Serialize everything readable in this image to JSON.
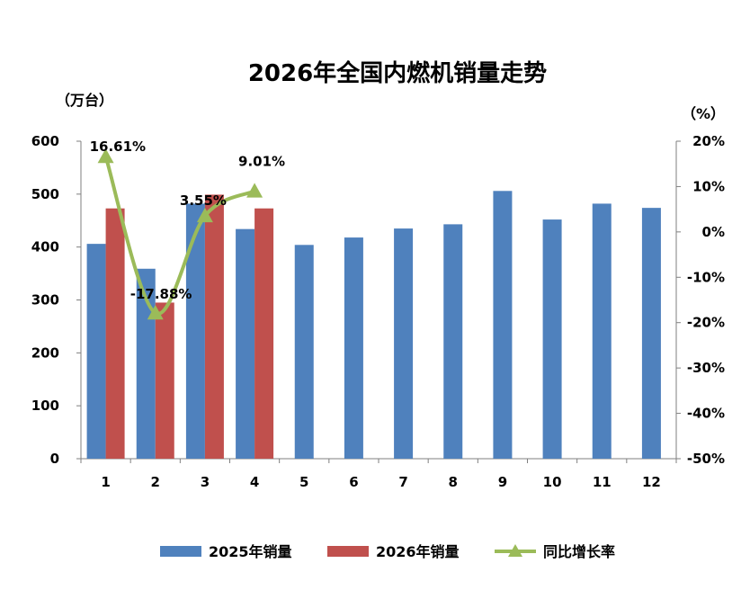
{
  "chart_data": {
    "type": "bar",
    "title": "2026年全国内燃机销量走势",
    "y_left_unit": "（万台）",
    "y_right_unit": "（%）",
    "categories": [
      "1",
      "2",
      "3",
      "4",
      "5",
      "6",
      "7",
      "8",
      "9",
      "10",
      "11",
      "12"
    ],
    "y_left_ticks": [
      "0",
      "100",
      "200",
      "300",
      "400",
      "500",
      "600"
    ],
    "y_right_ticks": [
      "-50%",
      "-40%",
      "-30%",
      "-20%",
      "-10%",
      "0%",
      "10%",
      "20%"
    ],
    "ylim_left": [
      0,
      600
    ],
    "ylim_right": [
      -50,
      20
    ],
    "series": [
      {
        "name": "2025年销量",
        "type": "bar",
        "color": "#4F81BD",
        "values": [
          406,
          359,
          482,
          434,
          404,
          418,
          435,
          443,
          506,
          452,
          482,
          474
        ]
      },
      {
        "name": "2026年销量",
        "type": "bar",
        "color": "#C0504D",
        "values": [
          473,
          295,
          499,
          473,
          null,
          null,
          null,
          null,
          null,
          null,
          null,
          null
        ]
      },
      {
        "name": "同比增长率",
        "type": "line",
        "axis": "right",
        "color": "#9BBB59",
        "marker": "triangle",
        "values": [
          16.61,
          -17.88,
          3.55,
          9.01,
          null,
          null,
          null,
          null,
          null,
          null,
          null,
          null
        ],
        "labels": [
          "16.61%",
          "-17.88%",
          "3.55%",
          "9.01%"
        ]
      }
    ],
    "grid": false,
    "legend_position": "bottom"
  }
}
